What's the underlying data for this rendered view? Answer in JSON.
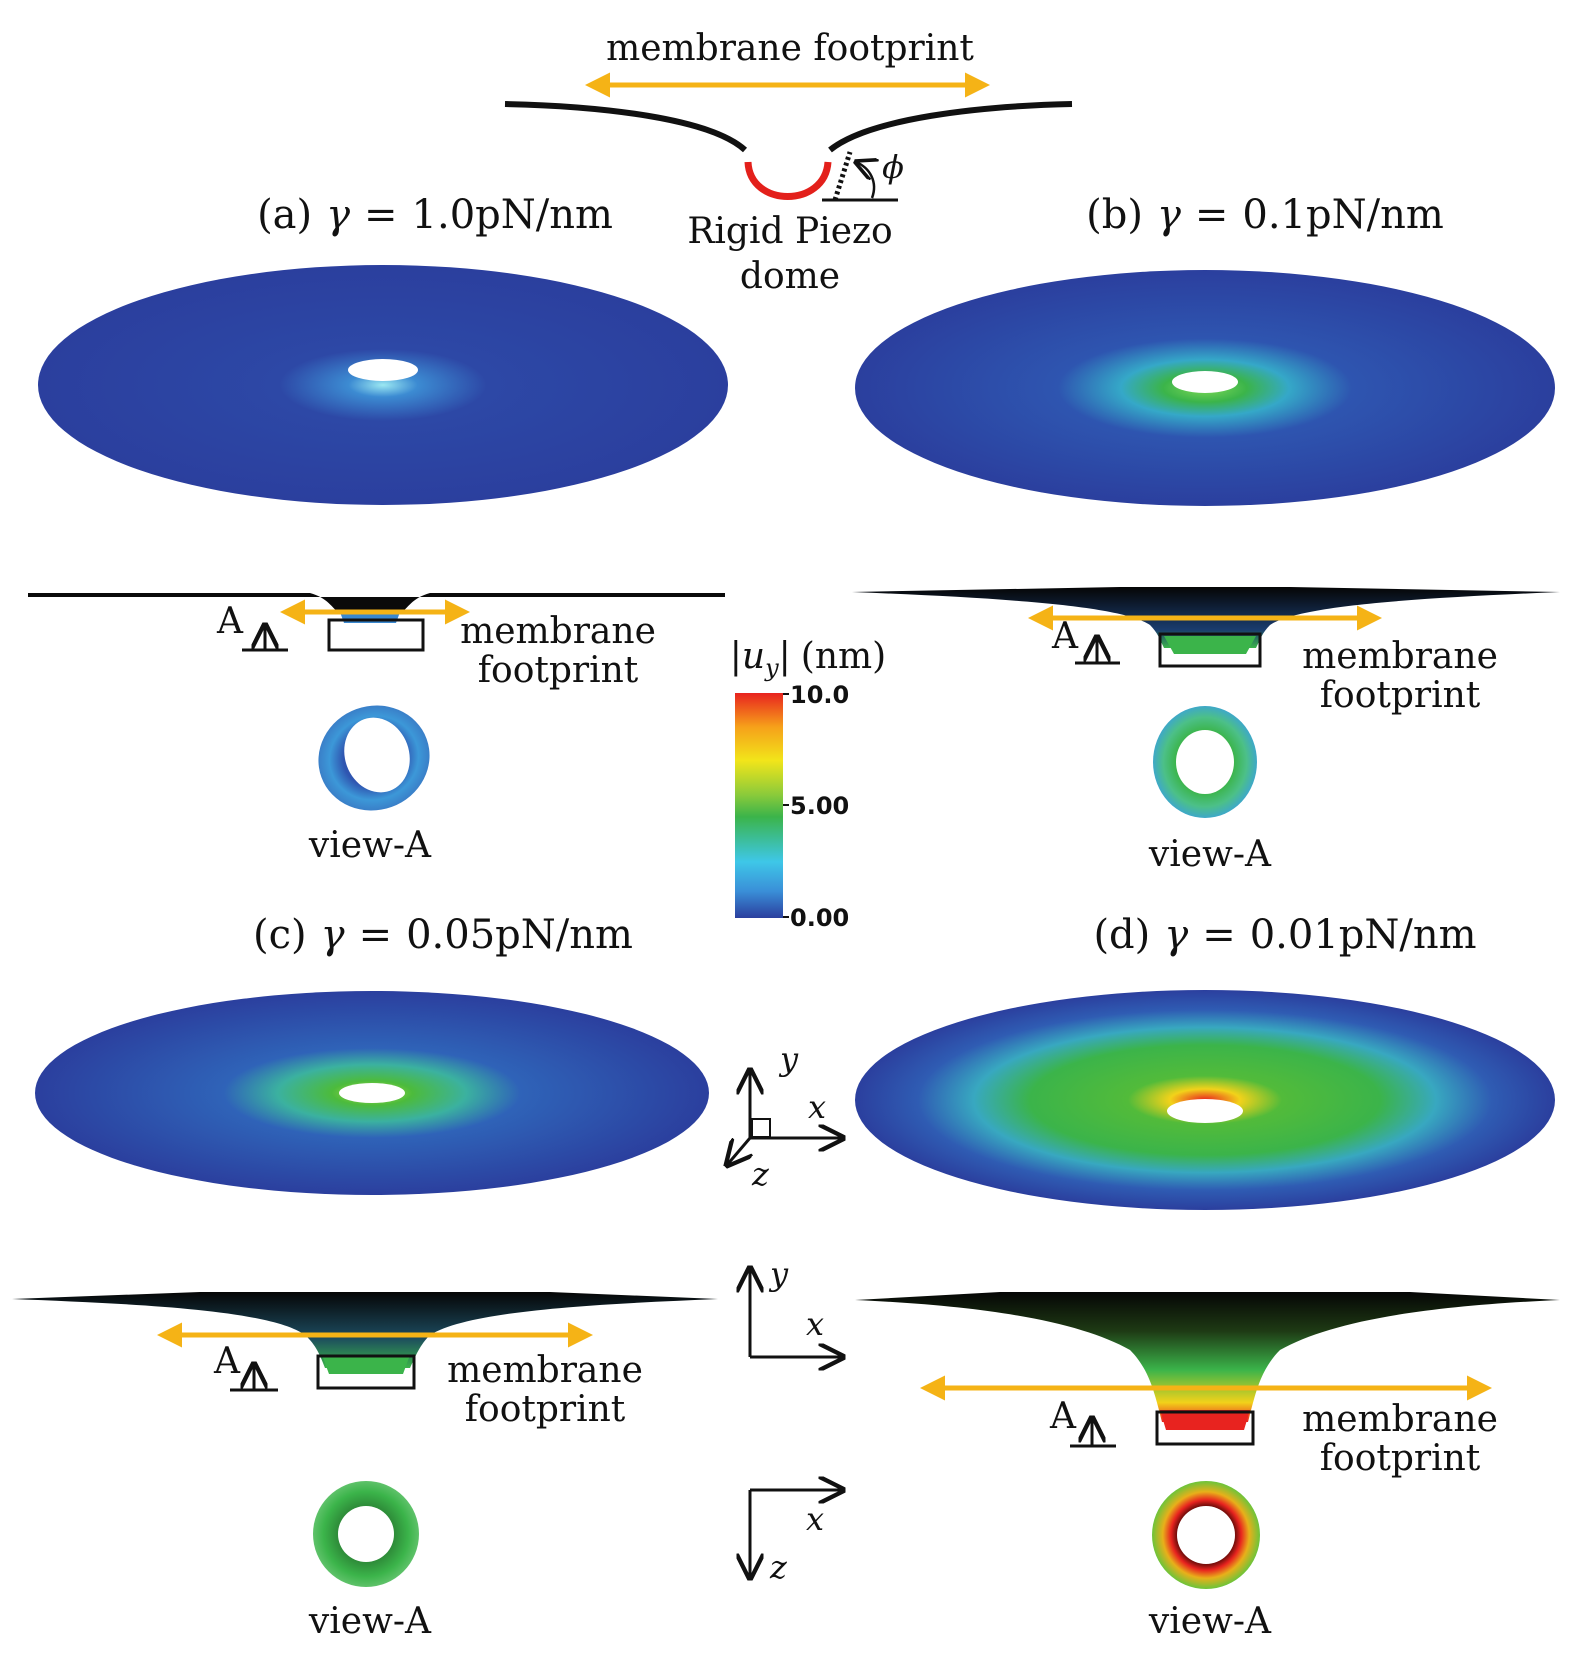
{
  "schematic": {
    "footprint_label": "membrane footprint",
    "dome_label_line1": "Rigid Piezo",
    "dome_label_line2": "dome",
    "angle_symbol": "ϕ"
  },
  "panels": [
    {
      "letter": "(a)",
      "gamma_symbol": "γ",
      "equals": "=",
      "value": "1.0pN/nm",
      "footprint_line1": "membrane",
      "footprint_line2": "footprint",
      "section_marker": "A",
      "view_label": "view-A"
    },
    {
      "letter": "(b)",
      "gamma_symbol": "γ",
      "equals": "=",
      "value": "0.1pN/nm",
      "footprint_line1": "membrane",
      "footprint_line2": "footprint",
      "section_marker": "A",
      "view_label": "view-A"
    },
    {
      "letter": "(c)",
      "gamma_symbol": "γ",
      "equals": "=",
      "value": "0.05pN/nm",
      "footprint_line1": "membrane",
      "footprint_line2": "footprint",
      "section_marker": "A",
      "view_label": "view-A"
    },
    {
      "letter": "(d)",
      "gamma_symbol": "γ",
      "equals": "=",
      "value": "0.01pN/nm",
      "footprint_line1": "membrane",
      "footprint_line2": "footprint",
      "section_marker": "A",
      "view_label": "view-A"
    }
  ],
  "colorbar": {
    "label_open": "|",
    "label_var": "u",
    "label_sub": "y",
    "label_close": "|",
    "label_unit": "(nm)",
    "ticks": [
      "10.0",
      "5.00",
      "0.00"
    ],
    "colors": [
      "#e8231f",
      "#f6a01a",
      "#f2e51a",
      "#6cc43a",
      "#3bb44a",
      "#3ec7e8",
      "#3a8fd8",
      "#2b3f9e"
    ]
  },
  "axes_triads": [
    {
      "labels": [
        "y",
        "x",
        "z"
      ]
    },
    {
      "labels": [
        "y",
        "x"
      ]
    },
    {
      "labels": [
        "x",
        "z"
      ]
    }
  ],
  "colors": {
    "arrow": "#f5b316",
    "dome": "#e3201b",
    "membrane_base": "#2b3f9e"
  }
}
